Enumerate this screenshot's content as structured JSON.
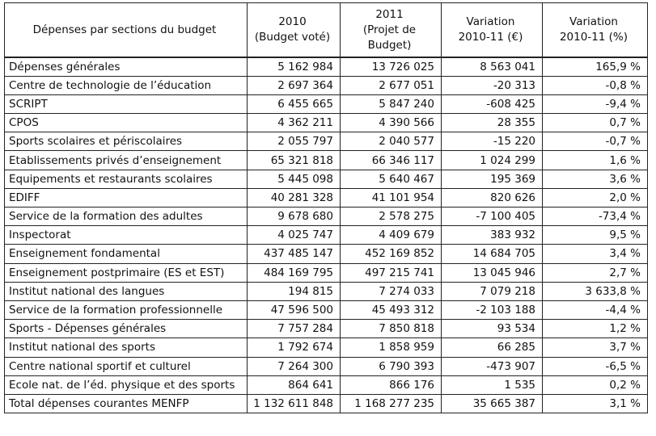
{
  "table": {
    "header": [
      [
        "Dépenses par sections du budget"
      ],
      [
        "2010",
        "(Budget voté)"
      ],
      [
        "2011",
        "(Projet de",
        "Budget)"
      ],
      [
        "Variation",
        "2010-11 (€)"
      ],
      [
        "Variation",
        "2010-11 (%)"
      ]
    ],
    "rows": [
      [
        "Dépenses générales",
        "5 162 984",
        "13 726 025",
        "8 563 041",
        "165,9 %"
      ],
      [
        "Centre de technologie de l’éducation",
        "2 697 364",
        "2 677 051",
        "-20 313",
        "-0,8 %"
      ],
      [
        "SCRIPT",
        "6 455 665",
        "5 847 240",
        "-608 425",
        "-9,4 %"
      ],
      [
        "CPOS",
        "4 362 211",
        "4 390 566",
        "28 355",
        "0,7 %"
      ],
      [
        "Sports scolaires et périscolaires",
        "2 055 797",
        "2 040 577",
        "-15 220",
        "-0,7 %"
      ],
      [
        "Etablissements privés d’enseignement",
        "65 321 818",
        "66 346 117",
        "1 024 299",
        "1,6 %"
      ],
      [
        "Equipements et restaurants scolaires",
        "5 445 098",
        "5 640 467",
        "195 369",
        "3,6 %"
      ],
      [
        "EDIFF",
        "40 281 328",
        "41 101 954",
        "820 626",
        "2,0 %"
      ],
      [
        "Service de la formation des adultes",
        "9 678 680",
        "2 578 275",
        "-7 100 405",
        "-73,4 %"
      ],
      [
        "Inspectorat",
        "4 025 747",
        "4 409 679",
        "383 932",
        "9,5 %"
      ],
      [
        "Enseignement fondamental",
        "437 485 147",
        "452 169 852",
        "14 684 705",
        "3,4 %"
      ],
      [
        "Enseignement postprimaire (ES et EST)",
        "484 169 795",
        "497 215 741",
        "13 045 946",
        "2,7 %"
      ],
      [
        "Institut national des langues",
        "194 815",
        "7 274 033",
        "7 079 218",
        "3 633,8 %"
      ],
      [
        "Service de la formation professionnelle",
        "47 596 500",
        "45 493 312",
        "-2 103 188",
        "-4,4 %"
      ],
      [
        "Sports - Dépenses générales",
        "7 757 284",
        "7 850 818",
        "93 534",
        "1,2 %"
      ],
      [
        "Institut national des sports",
        "1 792 674",
        "1 858 959",
        "66 285",
        "3,7 %"
      ],
      [
        "Centre national sportif et culturel",
        "7 264 300",
        "6 790 393",
        "-473 907",
        "-6,5 %"
      ],
      [
        "Ecole nat. de l’éd. physique et des sports",
        "864 641",
        "866 176",
        "1 535",
        "0,2 %"
      ],
      [
        "Total dépenses courantes MENFP",
        "1 132 611 848",
        "1 168 277 235",
        "35 665 387",
        "3,1 %"
      ]
    ]
  }
}
